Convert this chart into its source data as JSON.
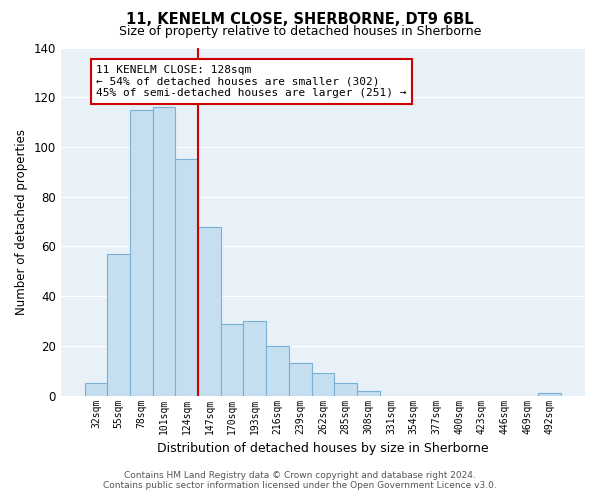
{
  "title": "11, KENELM CLOSE, SHERBORNE, DT9 6BL",
  "subtitle": "Size of property relative to detached houses in Sherborne",
  "xlabel": "Distribution of detached houses by size in Sherborne",
  "ylabel": "Number of detached properties",
  "bin_labels": [
    "32sqm",
    "55sqm",
    "78sqm",
    "101sqm",
    "124sqm",
    "147sqm",
    "170sqm",
    "193sqm",
    "216sqm",
    "239sqm",
    "262sqm",
    "285sqm",
    "308sqm",
    "331sqm",
    "354sqm",
    "377sqm",
    "400sqm",
    "423sqm",
    "446sqm",
    "469sqm",
    "492sqm"
  ],
  "bar_values": [
    5,
    57,
    115,
    116,
    95,
    68,
    29,
    30,
    20,
    13,
    9,
    5,
    2,
    0,
    0,
    0,
    0,
    0,
    0,
    0,
    1
  ],
  "highlight_bin_index": 4,
  "bar_color": "#c6dff0",
  "bar_edge_color": "#7aafd4",
  "highlight_line_color": "#cc0000",
  "annotation_text": "11 KENELM CLOSE: 128sqm\n← 54% of detached houses are smaller (302)\n45% of semi-detached houses are larger (251) →",
  "annotation_box_color": "#ffffff",
  "annotation_box_edge": "#cc0000",
  "ylim": [
    0,
    140
  ],
  "yticks": [
    0,
    20,
    40,
    60,
    80,
    100,
    120,
    140
  ],
  "footer_line1": "Contains HM Land Registry data © Crown copyright and database right 2024.",
  "footer_line2": "Contains public sector information licensed under the Open Government Licence v3.0.",
  "background_color": "#ffffff",
  "plot_bg_color": "#e8f0f8",
  "grid_color": "#ffffff"
}
